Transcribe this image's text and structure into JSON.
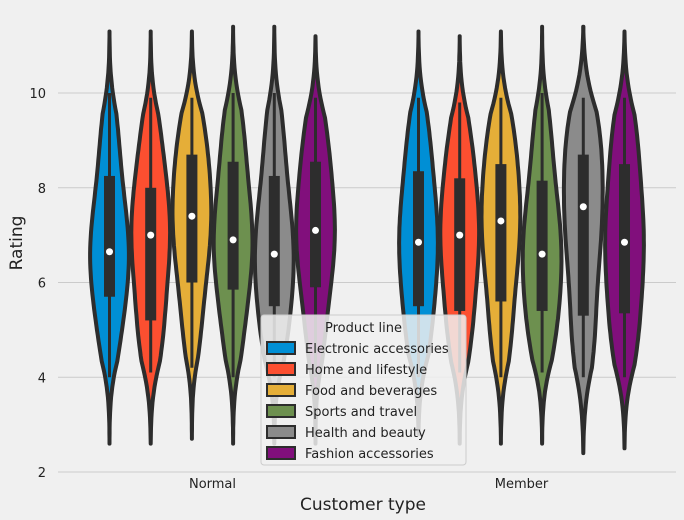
{
  "chart_data": {
    "type": "violin",
    "title": "",
    "xlabel": "Customer type",
    "ylabel": "Rating",
    "categories": [
      "Normal",
      "Member"
    ],
    "ylim": [
      2,
      11.5
    ],
    "yticks": [
      2,
      4,
      6,
      8,
      10
    ],
    "grid": true,
    "legend": {
      "title": "Product line",
      "placement": "lower-center"
    },
    "series": [
      {
        "name": "Electronic accessories",
        "color": "#008fd5",
        "stats": [
          {
            "min": 4.0,
            "q1": 5.7,
            "median": 6.65,
            "q3": 8.25,
            "max": 10.0,
            "kde_min": 2.6,
            "kde_max": 11.3
          },
          {
            "min": 4.0,
            "q1": 5.5,
            "median": 6.85,
            "q3": 8.35,
            "max": 9.9,
            "kde_min": 2.8,
            "kde_max": 11.3
          }
        ]
      },
      {
        "name": "Home and lifestyle",
        "color": "#fc4f30",
        "stats": [
          {
            "min": 4.1,
            "q1": 5.2,
            "median": 7.0,
            "q3": 8.0,
            "max": 9.9,
            "kde_min": 2.6,
            "kde_max": 11.3
          },
          {
            "min": 4.1,
            "q1": 5.4,
            "median": 7.0,
            "q3": 8.2,
            "max": 9.8,
            "kde_min": 2.6,
            "kde_max": 11.2
          }
        ]
      },
      {
        "name": "Food and beverages",
        "color": "#e5ae38",
        "stats": [
          {
            "min": 4.2,
            "q1": 6.0,
            "median": 7.4,
            "q3": 8.7,
            "max": 9.9,
            "kde_min": 2.7,
            "kde_max": 11.3
          },
          {
            "min": 4.0,
            "q1": 5.6,
            "median": 7.3,
            "q3": 8.5,
            "max": 9.9,
            "kde_min": 2.6,
            "kde_max": 11.3
          }
        ]
      },
      {
        "name": "Sports and travel",
        "color": "#6d904f",
        "stats": [
          {
            "min": 4.0,
            "q1": 5.85,
            "median": 6.9,
            "q3": 8.55,
            "max": 10.0,
            "kde_min": 2.6,
            "kde_max": 11.4
          },
          {
            "min": 4.1,
            "q1": 5.4,
            "median": 6.6,
            "q3": 8.15,
            "max": 10.0,
            "kde_min": 2.6,
            "kde_max": 11.4
          }
        ]
      },
      {
        "name": "Health and beauty",
        "color": "#8b8b8b",
        "stats": [
          {
            "min": 4.0,
            "q1": 5.5,
            "median": 6.6,
            "q3": 8.25,
            "max": 10.0,
            "kde_min": 2.6,
            "kde_max": 11.4
          },
          {
            "min": 4.0,
            "q1": 5.3,
            "median": 7.6,
            "q3": 8.7,
            "max": 9.9,
            "kde_min": 2.4,
            "kde_max": 11.4
          }
        ]
      },
      {
        "name": "Fashion accessories",
        "color": "#810f7c",
        "stats": [
          {
            "min": 4.0,
            "q1": 5.9,
            "median": 7.1,
            "q3": 8.55,
            "max": 9.9,
            "kde_min": 2.6,
            "kde_max": 11.2
          },
          {
            "min": 4.0,
            "q1": 5.35,
            "median": 6.85,
            "q3": 8.5,
            "max": 9.9,
            "kde_min": 2.5,
            "kde_max": 11.3
          }
        ]
      }
    ]
  }
}
